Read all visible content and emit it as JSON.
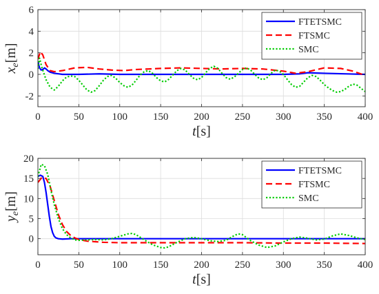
{
  "chart_data": [
    {
      "type": "line",
      "ylabel": "x_e[m]",
      "xlabel": "t[s]",
      "xlim": [
        0,
        400
      ],
      "ylim": [
        -3,
        6
      ],
      "xticks": [
        "0",
        "50",
        "100",
        "150",
        "200",
        "250",
        "300",
        "350",
        "400"
      ],
      "yticks": [
        "-2",
        "0",
        "2",
        "4",
        "6"
      ],
      "ytick_values": [
        -2,
        0,
        2,
        4,
        6
      ],
      "grid": true,
      "legend_position": "top-right",
      "series": [
        {
          "name": "FTETSMC",
          "color": "#0000ff",
          "dash": "solid",
          "x": [
            0,
            2,
            4,
            6,
            8,
            10,
            12,
            15,
            20,
            25,
            30,
            40,
            50,
            75,
            100,
            150,
            200,
            250,
            300,
            320,
            330,
            350,
            400
          ],
          "y": [
            1.2,
            0.6,
            0.4,
            0.45,
            0.6,
            0.5,
            0.35,
            0.2,
            0.1,
            0.05,
            0.0,
            0.0,
            0.0,
            0.05,
            0.0,
            0.0,
            0.0,
            0.0,
            0.0,
            0.05,
            0.15,
            0.1,
            0.0
          ]
        },
        {
          "name": "FTSMC",
          "color": "#ff0000",
          "dash": "dashed",
          "x": [
            0,
            3,
            6,
            10,
            15,
            20,
            30,
            45,
            60,
            75,
            90,
            105,
            120,
            135,
            150,
            175,
            200,
            225,
            250,
            275,
            300,
            315,
            330,
            350,
            370,
            385,
            400
          ],
          "y": [
            1.4,
            2.1,
            1.8,
            0.9,
            0.35,
            0.25,
            0.35,
            0.6,
            0.65,
            0.5,
            0.4,
            0.35,
            0.45,
            0.5,
            0.55,
            0.6,
            0.55,
            0.5,
            0.55,
            0.5,
            0.3,
            0.1,
            0.25,
            0.6,
            0.55,
            0.3,
            -0.1
          ]
        },
        {
          "name": "SMC",
          "color": "#00cc00",
          "dash": "dotted",
          "x": [
            0,
            2,
            5,
            10,
            15,
            20,
            25,
            30,
            35,
            40,
            45,
            50,
            55,
            60,
            65,
            70,
            75,
            80,
            85,
            90,
            95,
            100,
            105,
            110,
            115,
            120,
            125,
            130,
            135,
            140,
            145,
            150,
            155,
            160,
            165,
            170,
            175,
            180,
            185,
            190,
            195,
            200,
            205,
            210,
            215,
            220,
            225,
            230,
            235,
            240,
            245,
            250,
            255,
            260,
            265,
            270,
            275,
            280,
            285,
            290,
            295,
            300,
            305,
            310,
            315,
            320,
            325,
            330,
            335,
            340,
            345,
            350,
            355,
            360,
            365,
            370,
            375,
            380,
            385,
            390,
            395,
            400
          ],
          "y": [
            0.5,
            1.5,
            0.6,
            -0.5,
            -1.2,
            -1.45,
            -1.1,
            -0.6,
            -0.25,
            -0.15,
            -0.2,
            -0.55,
            -1.0,
            -1.45,
            -1.65,
            -1.5,
            -1.05,
            -0.55,
            -0.2,
            -0.1,
            -0.35,
            -0.75,
            -1.05,
            -1.2,
            -1.0,
            -0.55,
            -0.05,
            0.25,
            0.35,
            0.1,
            -0.3,
            -0.6,
            -0.7,
            -0.45,
            -0.05,
            0.35,
            0.55,
            0.4,
            0.0,
            -0.35,
            -0.5,
            -0.3,
            0.15,
            0.55,
            0.75,
            0.55,
            0.1,
            -0.3,
            -0.45,
            -0.25,
            0.1,
            0.45,
            0.6,
            0.4,
            0.0,
            -0.35,
            -0.5,
            -0.3,
            0.1,
            0.4,
            0.3,
            0.0,
            -0.5,
            -0.95,
            -1.2,
            -1.1,
            -0.7,
            -0.3,
            -0.1,
            -0.2,
            -0.55,
            -0.95,
            -1.25,
            -1.5,
            -1.65,
            -1.6,
            -1.4,
            -1.1,
            -0.9,
            -1.0,
            -1.3,
            -1.6
          ]
        }
      ]
    },
    {
      "type": "line",
      "ylabel": "y_e[m]",
      "xlabel": "t[s]",
      "xlim": [
        0,
        400
      ],
      "ylim": [
        -4,
        20
      ],
      "xticks": [
        "0",
        "50",
        "100",
        "150",
        "200",
        "250",
        "300",
        "350",
        "400"
      ],
      "yticks": [
        "0",
        "5",
        "10",
        "15",
        "20"
      ],
      "ytick_values": [
        0,
        5,
        10,
        15,
        20
      ],
      "grid": true,
      "legend_position": "top-right",
      "series": [
        {
          "name": "FTETSMC",
          "color": "#0000ff",
          "dash": "solid",
          "x": [
            0,
            3,
            6,
            8,
            10,
            12,
            14,
            16,
            18,
            20,
            22,
            25,
            30,
            40,
            60,
            100,
            200,
            300,
            400
          ],
          "y": [
            15.5,
            15.8,
            15.5,
            14.0,
            11.5,
            8.5,
            5.5,
            3.0,
            1.5,
            0.6,
            0.2,
            0.0,
            -0.1,
            0.0,
            0.0,
            0.0,
            0.0,
            0.0,
            0.0
          ]
        },
        {
          "name": "FTSMC",
          "color": "#ff0000",
          "dash": "dashed",
          "x": [
            0,
            5,
            10,
            15,
            20,
            25,
            30,
            35,
            40,
            45,
            50,
            60,
            80,
            100,
            150,
            200,
            250,
            300,
            350,
            400
          ],
          "y": [
            14.0,
            15.3,
            15.0,
            13.0,
            9.5,
            6.0,
            3.5,
            1.8,
            0.8,
            0.2,
            -0.2,
            -0.6,
            -0.9,
            -1.0,
            -1.0,
            -1.0,
            -1.0,
            -1.1,
            -1.1,
            -1.2
          ]
        },
        {
          "name": "SMC",
          "color": "#00cc00",
          "dash": "dotted",
          "x": [
            0,
            4,
            8,
            12,
            16,
            20,
            25,
            30,
            35,
            40,
            45,
            50,
            60,
            70,
            80,
            90,
            100,
            110,
            115,
            120,
            130,
            140,
            150,
            155,
            160,
            170,
            180,
            190,
            200,
            210,
            220,
            230,
            240,
            245,
            250,
            260,
            270,
            280,
            290,
            300,
            310,
            320,
            330,
            340,
            350,
            360,
            370,
            380,
            390,
            400
          ],
          "y": [
            15.5,
            18.5,
            18.2,
            16.0,
            12.0,
            8.5,
            5.0,
            2.5,
            1.0,
            0.2,
            -0.3,
            -0.4,
            -0.3,
            -0.2,
            -0.3,
            0.0,
            0.6,
            1.2,
            1.3,
            1.0,
            -0.3,
            -1.5,
            -2.2,
            -2.3,
            -2.0,
            -0.9,
            0.0,
            0.3,
            0.0,
            -0.5,
            -0.7,
            -0.4,
            0.8,
            1.2,
            1.0,
            -0.5,
            -1.6,
            -2.2,
            -1.8,
            -0.8,
            0.0,
            0.4,
            0.1,
            -0.3,
            -0.1,
            0.7,
            1.2,
            0.8,
            0.2,
            -0.2
          ]
        }
      ]
    }
  ]
}
